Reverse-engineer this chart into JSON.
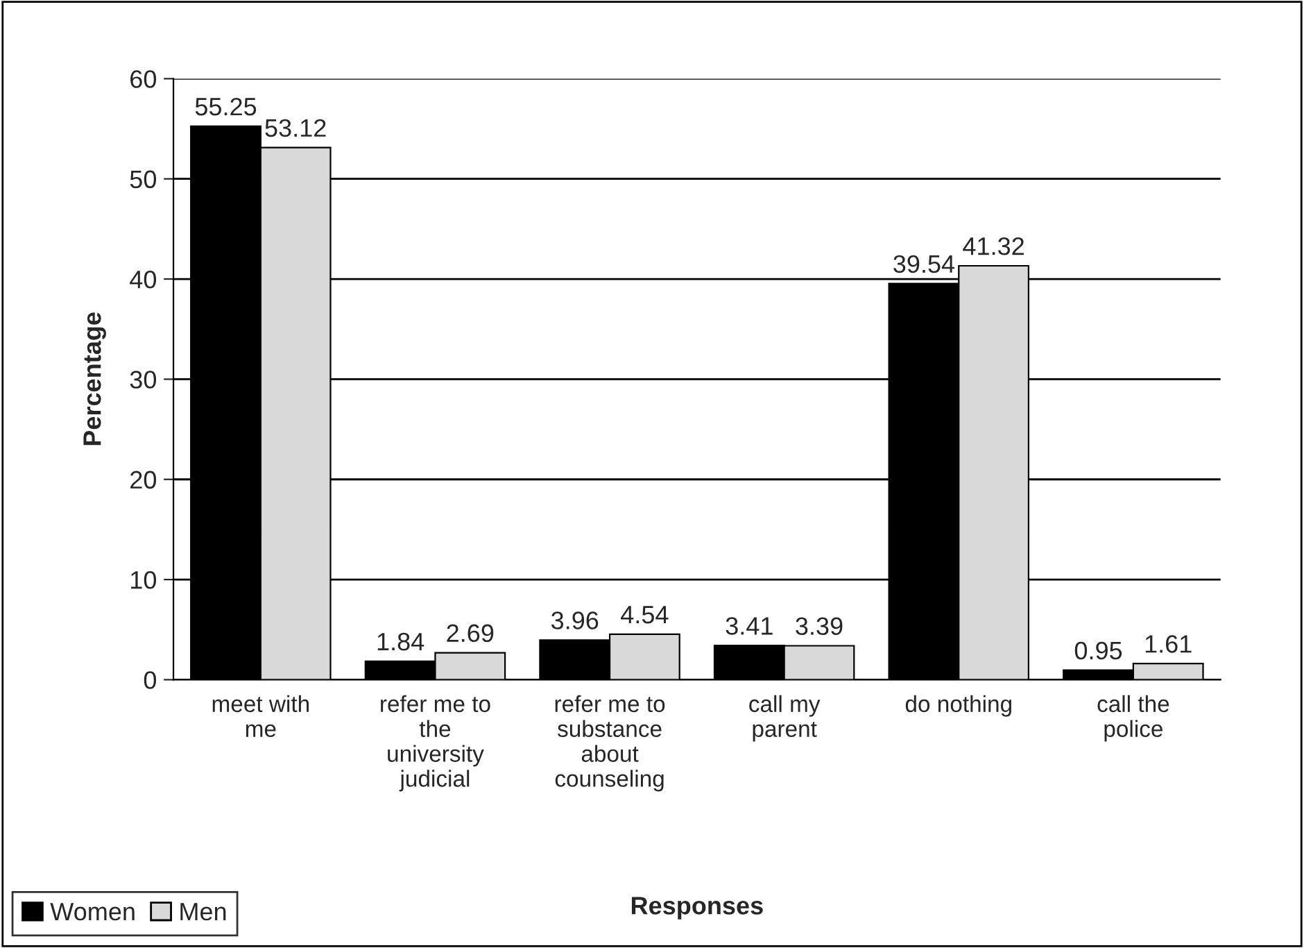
{
  "chart_data": {
    "type": "bar",
    "xlabel": "Responses",
    "ylabel": "Percentage",
    "categories": [
      "meet with\nme",
      "refer me to\nthe\nuniversity\njudicial",
      "refer me to\nsubstance\nabout\ncounseling",
      "call my\nparent",
      "do nothing",
      "call the\npolice"
    ],
    "series": [
      {
        "name": "Women",
        "color": "#000000",
        "values": [
          55.25,
          1.84,
          3.96,
          3.41,
          39.54,
          0.95
        ]
      },
      {
        "name": "Men",
        "color": "#d9d9d9",
        "values": [
          53.12,
          2.69,
          4.54,
          3.39,
          41.32,
          1.61
        ]
      }
    ],
    "ylim": [
      0,
      60
    ],
    "yticks": [
      0,
      10,
      20,
      30,
      40,
      50,
      60
    ],
    "grid": "y",
    "legend": "bottom left",
    "data_labels": true
  }
}
